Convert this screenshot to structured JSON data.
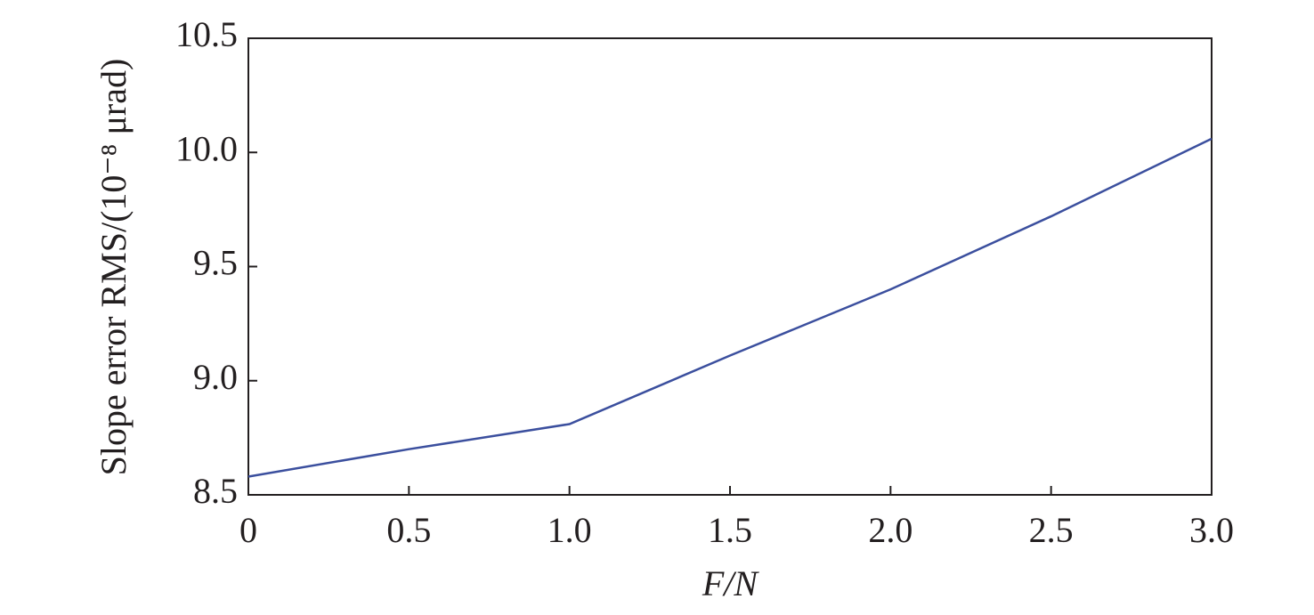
{
  "chart_data": {
    "type": "line",
    "x_label": "F/N",
    "y_label": "Slope error RMS/(10⁻⁸ μrad)",
    "x": [
      0,
      0.5,
      1.0,
      1.5,
      2.0,
      2.5,
      3.0
    ],
    "series": [
      {
        "name": "Slope error RMS",
        "color": "#3b4f9e",
        "values": [
          8.58,
          8.7,
          8.81,
          9.11,
          9.4,
          9.72,
          10.06
        ]
      }
    ],
    "xlim": [
      0,
      3
    ],
    "ylim": [
      8.5,
      10.5
    ],
    "xticks": [
      0,
      0.5,
      {
        "value": 1,
        "label": "1.0"
      },
      1.5,
      {
        "value": 2,
        "label": "2.0"
      },
      2.5,
      {
        "value": 3,
        "label": "3.0"
      }
    ],
    "yticks": [
      8.5,
      {
        "value": 9,
        "label": "9.0"
      },
      9.5,
      {
        "value": 10,
        "label": "10.0"
      },
      10.5
    ]
  }
}
